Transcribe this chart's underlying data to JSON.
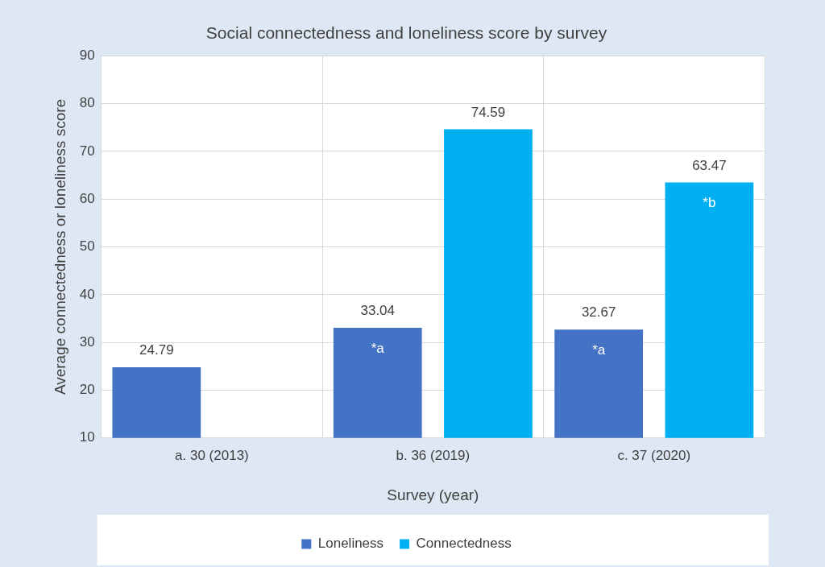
{
  "chart_data": {
    "type": "bar",
    "title": "Social connectedness and loneliness score by survey",
    "xlabel": "Survey (year)",
    "ylabel": "Average connectedness or loneliness score",
    "categories": [
      "a. 30 (2013)",
      "b. 36 (2019)",
      "c. 37 (2020)"
    ],
    "series": [
      {
        "name": "Loneliness",
        "color": "#4472c4",
        "values": [
          24.79,
          33.04,
          32.67
        ]
      },
      {
        "name": "Connectedness",
        "color": "#00b0f0",
        "values": [
          null,
          74.59,
          63.47
        ]
      }
    ],
    "ylim": [
      10,
      90
    ],
    "yticks": [
      10,
      20,
      30,
      40,
      50,
      60,
      70,
      80,
      90
    ],
    "grid": true,
    "legend": "bottom",
    "data_labels": true,
    "annotations": [
      "*a",
      "*a",
      "*b"
    ]
  }
}
